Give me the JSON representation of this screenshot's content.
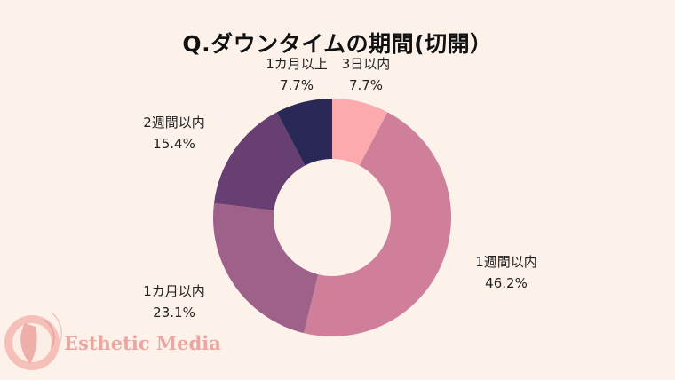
{
  "chart_data": {
    "type": "pie",
    "title": "Q.ダウンタイムの期間(切開）",
    "categories": [
      "3日以内",
      "1週間以内",
      "1カ月以内",
      "2週間以内",
      "1カ月以上"
    ],
    "values": [
      7.7,
      46.2,
      23.1,
      15.4,
      7.7
    ],
    "value_labels": [
      "7.7%",
      "46.2%",
      "23.1%",
      "15.4%",
      "7.7%"
    ],
    "colors": [
      "#fcaaad",
      "#cf7f9a",
      "#9e6189",
      "#683f72",
      "#2a2857"
    ],
    "donut": true
  },
  "watermark": {
    "text": "Esthetic Media"
  }
}
